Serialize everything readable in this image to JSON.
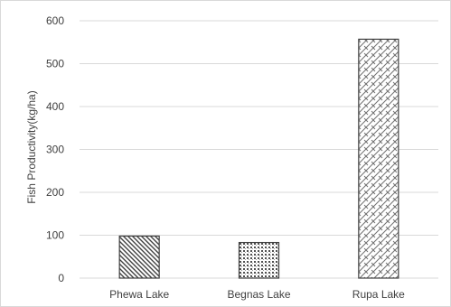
{
  "chart_data": {
    "type": "bar",
    "title": "",
    "xlabel": "",
    "ylabel": "Fish Productivity(kg/ha)",
    "ylim": [
      0,
      600
    ],
    "yticks": [
      0,
      100,
      200,
      300,
      400,
      500,
      600
    ],
    "grid": true,
    "legend": "none",
    "categories": [
      "Phewa Lake",
      "Begnas Lake",
      "Rupa Lake"
    ],
    "values": [
      98,
      83,
      557
    ],
    "patterns": [
      "diagonal-stripes",
      "dotted-grid",
      "diagonal-brick"
    ],
    "colors": {
      "bar_stroke": "#404040",
      "grid": "#d9d9d9",
      "text": "#404040"
    }
  }
}
